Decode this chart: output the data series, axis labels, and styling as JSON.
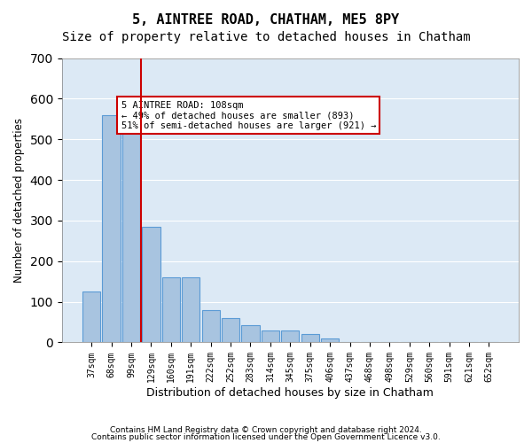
{
  "title": "5, AINTREE ROAD, CHATHAM, ME5 8PY",
  "subtitle": "Size of property relative to detached houses in Chatham",
  "xlabel": "Distribution of detached houses by size in Chatham",
  "ylabel": "Number of detached properties",
  "categories": [
    "37sqm",
    "68sqm",
    "99sqm",
    "129sqm",
    "160sqm",
    "191sqm",
    "222sqm",
    "252sqm",
    "283sqm",
    "314sqm",
    "345sqm",
    "375sqm",
    "406sqm",
    "437sqm",
    "468sqm",
    "498sqm",
    "529sqm",
    "560sqm",
    "591sqm",
    "621sqm",
    "652sqm"
  ],
  "values": [
    125,
    560,
    550,
    285,
    160,
    160,
    80,
    60,
    42,
    30,
    30,
    20,
    10,
    0,
    0,
    0,
    0,
    0,
    0,
    0,
    0
  ],
  "bar_color": "#a8c4e0",
  "bar_edge_color": "#5b9bd5",
  "background_color": "#dce9f5",
  "vline_x": 2,
  "vline_color": "#cc0000",
  "annotation_text": "5 AINTREE ROAD: 108sqm\n← 49% of detached houses are smaller (893)\n51% of semi-detached houses are larger (921) →",
  "annotation_box_color": "#cc0000",
  "ylim": [
    0,
    700
  ],
  "yticks": [
    0,
    100,
    200,
    300,
    400,
    500,
    600,
    700
  ],
  "footer1": "Contains HM Land Registry data © Crown copyright and database right 2024.",
  "footer2": "Contains public sector information licensed under the Open Government Licence v3.0.",
  "title_fontsize": 11,
  "subtitle_fontsize": 10,
  "xlabel_fontsize": 9,
  "ylabel_fontsize": 8.5
}
